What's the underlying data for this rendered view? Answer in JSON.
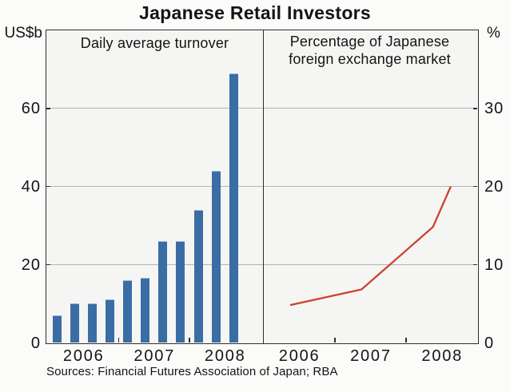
{
  "title": "Japanese Retail Investors",
  "sources": "Sources: Financial Futures Association of Japan; RBA",
  "colors": {
    "bar": "#3a6da4",
    "line": "#cc4130",
    "plot_background": "#f5f5f3",
    "page_background": "#fbfbfa",
    "frame": "#2e2e2e",
    "gridline": "#b4b4b1",
    "text": "#141414"
  },
  "chart_data": [
    {
      "type": "bar",
      "panel": "left",
      "title": "Daily average turnover",
      "unit_label": "US$b",
      "ylim": [
        0,
        80
      ],
      "yticks": [
        0,
        20,
        40,
        60
      ],
      "grid": true,
      "frequency": "quarterly",
      "x_tick_labels": [
        "2006",
        "2007",
        "2008"
      ],
      "categories": [
        "2006 Q1",
        "2006 Q2",
        "2006 Q3",
        "2006 Q4",
        "2007 Q1",
        "2007 Q2",
        "2007 Q3",
        "2007 Q4",
        "2008 Q1",
        "2008 Q2",
        "2008 Q3"
      ],
      "values": [
        7,
        10,
        10,
        11,
        16,
        16.5,
        26,
        26,
        34,
        44,
        69
      ]
    },
    {
      "type": "line",
      "panel": "right",
      "title": "Percentage of Japanese foreign exchange market",
      "title_lines": [
        "Percentage of Japanese",
        "foreign exchange market"
      ],
      "unit_label": "%",
      "ylim": [
        0,
        40
      ],
      "yticks": [
        0,
        10,
        20,
        30
      ],
      "grid": true,
      "x_tick_labels": [
        "2006",
        "2007",
        "2008"
      ],
      "points": [
        {
          "period": "2006 Q2",
          "x": 2006.375,
          "value": 4.8
        },
        {
          "period": "2007 Q2",
          "x": 2007.375,
          "value": 6.8
        },
        {
          "period": "2008 Q2",
          "x": 2008.375,
          "value": 14.8
        },
        {
          "period": "2008 Q3",
          "x": 2008.625,
          "value": 20
        }
      ]
    }
  ]
}
